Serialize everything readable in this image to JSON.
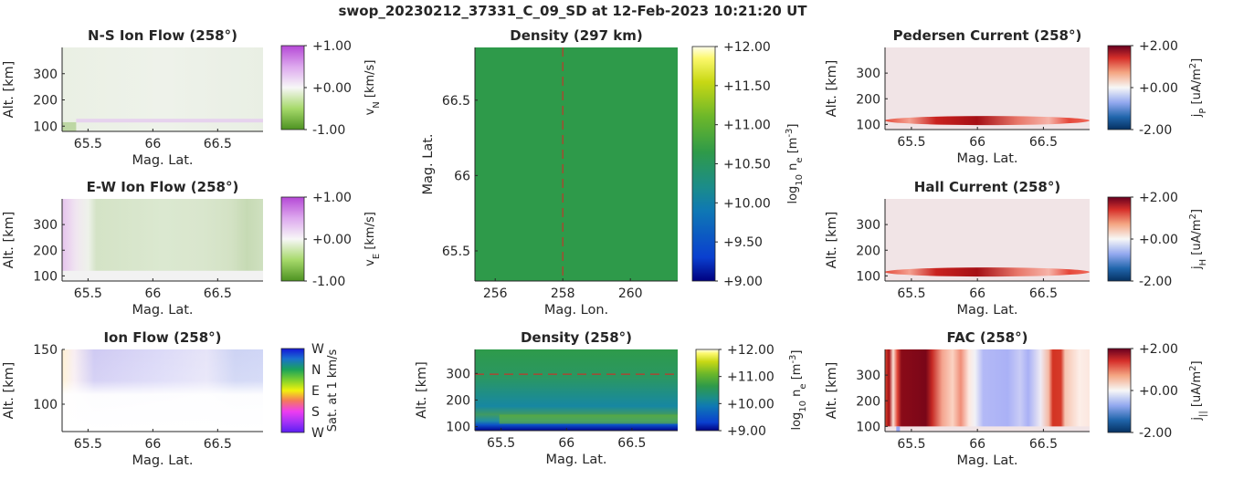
{
  "figure": {
    "suptitle": "swop_20230212_37331_C_09_SD at 12-Feb-2023 10:21:20 UT"
  },
  "chart_data": [
    {
      "id": "ns-flow",
      "type": "heatmap",
      "title": "N-S Ion Flow (258°)",
      "xlabel": "Mag. Lat.",
      "ylabel": "Alt. [km]",
      "xlim": [
        65.3,
        66.85
      ],
      "ylim": [
        80,
        400
      ],
      "xticks": [
        65.5,
        66,
        66.5
      ],
      "xtick_labels": [
        "65.5",
        "66",
        "66.5"
      ],
      "yticks": [
        100,
        200,
        300
      ],
      "ytick_labels": [
        "100",
        "200",
        "300"
      ],
      "colorbar": {
        "colormap": "green-white-purple",
        "range": [
          -1.0,
          1.0
        ],
        "ticks": [
          1.0,
          0.0,
          -1.0
        ],
        "tick_labels": [
          "+1.00",
          "+0.00",
          "-1.00"
        ],
        "label_main": "v",
        "label_sub": "N",
        "label_rest": " [km/s]"
      }
    },
    {
      "id": "ew-flow",
      "type": "heatmap",
      "title": "E-W Ion Flow (258°)",
      "xlabel": "Mag. Lat.",
      "ylabel": "Alt. [km]",
      "xlim": [
        65.3,
        66.85
      ],
      "ylim": [
        80,
        400
      ],
      "xticks": [
        65.5,
        66,
        66.5
      ],
      "xtick_labels": [
        "65.5",
        "66",
        "66.5"
      ],
      "yticks": [
        100,
        200,
        300
      ],
      "ytick_labels": [
        "100",
        "200",
        "300"
      ],
      "colorbar": {
        "colormap": "green-white-purple",
        "range": [
          -1.0,
          1.0
        ],
        "ticks": [
          1.0,
          0.0,
          -1.0
        ],
        "tick_labels": [
          "+1.00",
          "+0.00",
          "-1.00"
        ],
        "label_main": "v",
        "label_sub": "E",
        "label_rest": " [km/s]"
      }
    },
    {
      "id": "ion-flow",
      "type": "heatmap",
      "title": "Ion Flow (258°)",
      "xlabel": "Mag. Lat.",
      "ylabel": "Alt. [km]",
      "xlim": [
        65.3,
        66.85
      ],
      "ylim": [
        75,
        150
      ],
      "xticks": [
        65.5,
        66,
        66.5
      ],
      "xtick_labels": [
        "65.5",
        "66",
        "66.5"
      ],
      "yticks": [
        100,
        150
      ],
      "ytick_labels": [
        "100",
        "150"
      ],
      "colorbar": {
        "colormap": "direction-wheel",
        "tick_labels": [
          "W",
          "N",
          "E",
          "S",
          "W"
        ],
        "label_main": "Sat. at 1 km/s",
        "label_sub": "",
        "label_rest": ""
      }
    },
    {
      "id": "density-map",
      "type": "heatmap",
      "title": "Density (297 km)",
      "xlabel": "Mag. Lon.",
      "ylabel": "Mag. Lat.",
      "xlim": [
        255.4,
        261.4
      ],
      "ylim": [
        65.3,
        66.85
      ],
      "xticks": [
        256,
        258,
        260
      ],
      "xtick_labels": [
        "256",
        "258",
        "260"
      ],
      "yticks": [
        65.5,
        66,
        66.5
      ],
      "ytick_labels": [
        "65.5",
        "66",
        "66.5"
      ],
      "cut_line": {
        "orientation": "vertical",
        "value": 258
      },
      "colorbar": {
        "colormap": "parula",
        "range": [
          9.0,
          12.0
        ],
        "ticks": [
          12.0,
          11.5,
          11.0,
          10.5,
          10.0,
          9.5,
          9.0
        ],
        "tick_labels": [
          "+12.00",
          "+11.50",
          "+11.00",
          "+10.50",
          "+10.00",
          "+9.50",
          "+9.00"
        ],
        "label_main": "log",
        "label_sub": "10",
        "label_rest": " n",
        "label_sub2": "e",
        "label_unit": " [m",
        "label_sup": "-3",
        "label_end": "]"
      }
    },
    {
      "id": "density-profile",
      "type": "heatmap",
      "title": "Density (258°)",
      "xlabel": "Mag. Lat.",
      "ylabel": "Alt. [km]",
      "xlim": [
        65.3,
        66.85
      ],
      "ylim": [
        85,
        390
      ],
      "xticks": [
        65.5,
        66,
        66.5
      ],
      "xtick_labels": [
        "65.5",
        "66",
        "66.5"
      ],
      "yticks": [
        100,
        200,
        300
      ],
      "ytick_labels": [
        "100",
        "200",
        "300"
      ],
      "cut_line": {
        "orientation": "horizontal",
        "value": 297
      },
      "colorbar": {
        "colormap": "parula",
        "range": [
          9.0,
          12.0
        ],
        "ticks": [
          12.0,
          11.0,
          10.0,
          9.0
        ],
        "tick_labels": [
          "+12.00",
          "+11.00",
          "+10.00",
          "+9.00"
        ],
        "label_main": "log",
        "label_sub": "10",
        "label_rest": " n",
        "label_sub2": "e",
        "label_unit": " [m",
        "label_sup": "-3",
        "label_end": "]"
      }
    },
    {
      "id": "pedersen",
      "type": "heatmap",
      "title": "Pedersen Current (258°)",
      "xlabel": "Mag. Lat.",
      "ylabel": "Alt. [km]",
      "xlim": [
        65.3,
        66.85
      ],
      "ylim": [
        80,
        400
      ],
      "xticks": [
        65.5,
        66,
        66.5
      ],
      "xtick_labels": [
        "65.5",
        "66",
        "66.5"
      ],
      "yticks": [
        100,
        200,
        300
      ],
      "ytick_labels": [
        "100",
        "200",
        "300"
      ],
      "colorbar": {
        "colormap": "blue-white-red",
        "range": [
          -2.0,
          2.0
        ],
        "ticks": [
          2.0,
          0.0,
          -2.0
        ],
        "tick_labels": [
          "+2.00",
          "+0.00",
          "-2.00"
        ],
        "label_main": "j",
        "label_sub": "P",
        "label_rest": " [uA/m",
        "label_sup": "2",
        "label_end": "]"
      }
    },
    {
      "id": "hall",
      "type": "heatmap",
      "title": "Hall Current (258°)",
      "xlabel": "Mag. Lat.",
      "ylabel": "Alt. [km]",
      "xlim": [
        65.3,
        66.85
      ],
      "ylim": [
        80,
        400
      ],
      "xticks": [
        65.5,
        66,
        66.5
      ],
      "xtick_labels": [
        "65.5",
        "66",
        "66.5"
      ],
      "yticks": [
        100,
        200,
        300
      ],
      "ytick_labels": [
        "100",
        "200",
        "300"
      ],
      "colorbar": {
        "colormap": "blue-white-red",
        "range": [
          -2.0,
          2.0
        ],
        "ticks": [
          2.0,
          0.0,
          -2.0
        ],
        "tick_labels": [
          "+2.00",
          "+0.00",
          "-2.00"
        ],
        "label_main": "j",
        "label_sub": "H",
        "label_rest": " [uA/m",
        "label_sup": "2",
        "label_end": "]"
      }
    },
    {
      "id": "fac",
      "type": "heatmap",
      "title": "FAC (258°)",
      "xlabel": "Mag. Lat.",
      "ylabel": "Alt. [km]",
      "xlim": [
        65.3,
        66.85
      ],
      "ylim": [
        80,
        400
      ],
      "xticks": [
        65.5,
        66,
        66.5
      ],
      "xtick_labels": [
        "65.5",
        "66",
        "66.5"
      ],
      "yticks": [
        100,
        200,
        300
      ],
      "ytick_labels": [
        "100",
        "200",
        "300"
      ],
      "colorbar": {
        "colormap": "blue-white-red",
        "range": [
          -2.0,
          2.0
        ],
        "ticks": [
          2.0,
          0.0,
          -2.0
        ],
        "tick_labels": [
          "+2.00",
          "+0.00",
          "-2.00"
        ],
        "label_main": "j",
        "label_sub": "||",
        "label_rest": " [uA/m",
        "label_sup": "2",
        "label_end": "]"
      }
    }
  ]
}
